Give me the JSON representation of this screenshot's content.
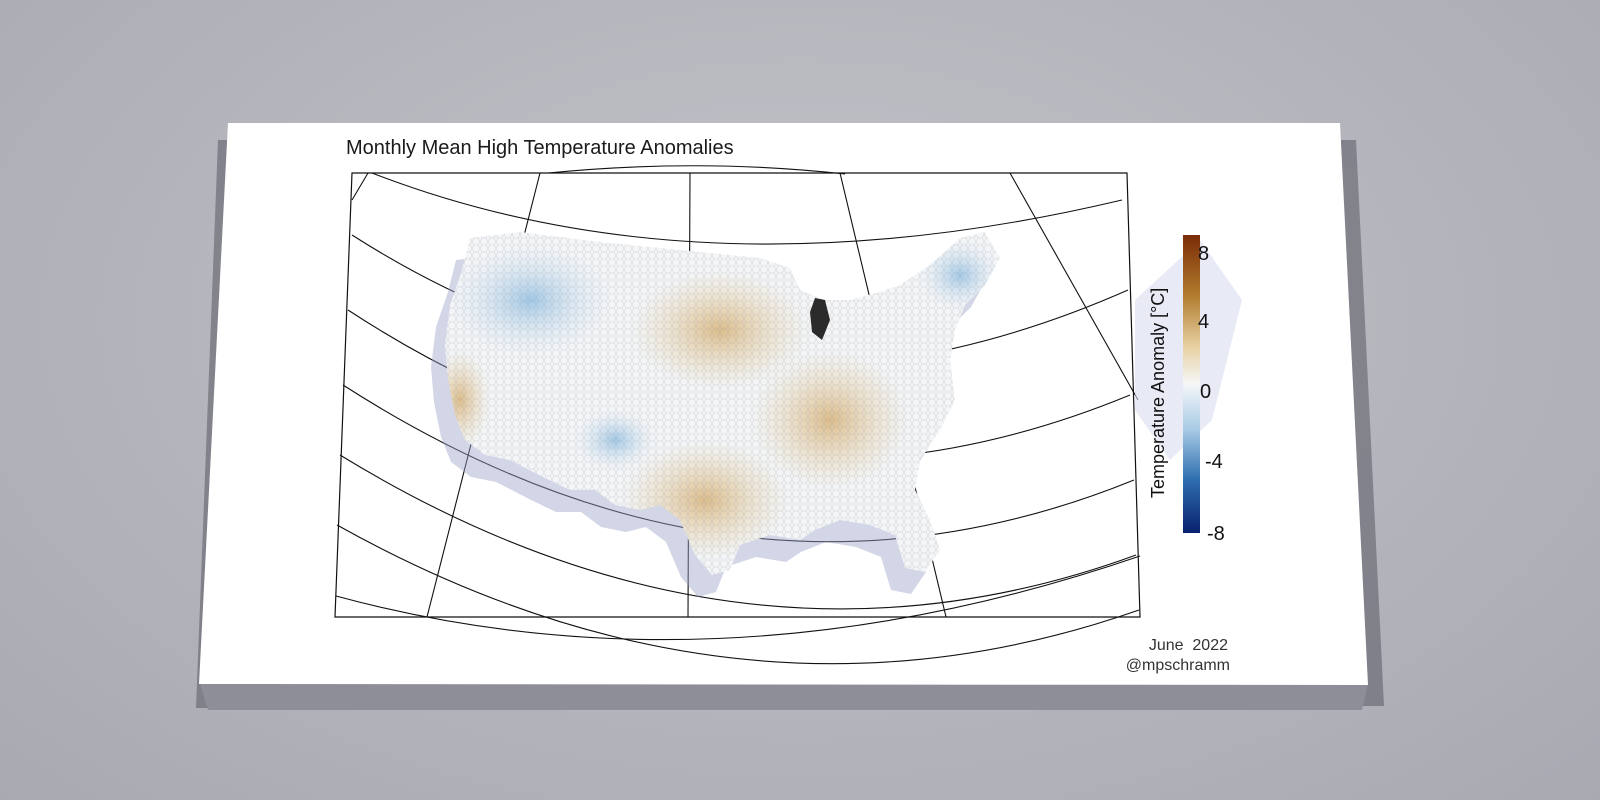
{
  "map": {
    "title": "Monthly Mean High Temperature Anomalies",
    "subject": "Contiguous United States",
    "colorbar": {
      "label": "Temperature Anomaly [°C]",
      "ticks": [
        "8",
        "4",
        "0",
        "-4",
        "-8"
      ],
      "range": [
        -8,
        8
      ],
      "colors": {
        "max": "#7a2c06",
        "warm": "#b07a2c",
        "mild_warm": "#e9d3a6",
        "neutral": "#f4f6f8",
        "mild_cool": "#a9cbe6",
        "cool": "#2f6fb0",
        "min": "#08206e"
      }
    },
    "date": "June  2022",
    "credit": "@mpschramm"
  }
}
